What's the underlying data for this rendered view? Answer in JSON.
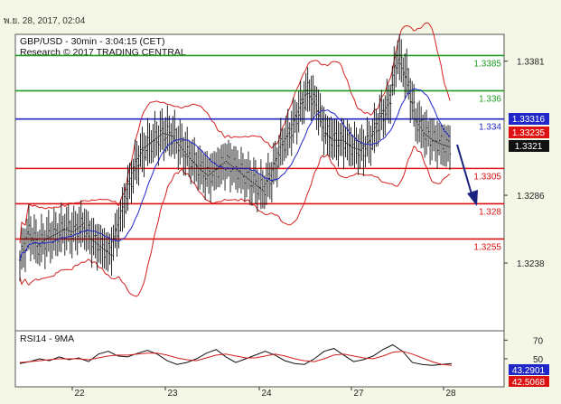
{
  "timestamp": "พ.ย. 28, 2017, 02:04",
  "chart_data": {
    "type": "line",
    "title": "GBP/USD - 30min - 3:04:15 (CET)",
    "subtitle": "Research © 2017 TRADING CENTRAL",
    "price_axis": {
      "ticks": [
        "1.3381",
        "1.3286",
        "1.3238"
      ]
    },
    "x_ticks": [
      "22",
      "23",
      "24",
      "27",
      "28"
    ],
    "levels": [
      {
        "label": "1.3385",
        "value": 1.3385,
        "color": "#1f9a1f"
      },
      {
        "label": "1.336",
        "value": 1.336,
        "color": "#1f9a1f"
      },
      {
        "label": "1.334",
        "value": 1.334,
        "color": "#2027c8"
      },
      {
        "label": "1.3305",
        "value": 1.3305,
        "color": "#dd1111"
      },
      {
        "label": "1.328",
        "value": 1.328,
        "color": "#dd1111"
      },
      {
        "label": "1.3255",
        "value": 1.3255,
        "color": "#dd1111"
      }
    ],
    "price_badges": [
      {
        "label": "1.33316",
        "color": "#2027c8"
      },
      {
        "label": "1.33235",
        "color": "#dd1111"
      },
      {
        "label": "1.3321",
        "color": "#111111"
      }
    ],
    "series": [
      {
        "name": "",
        "values": [
          1.324,
          1.326,
          1.325,
          1.3255,
          1.3258,
          1.3262,
          1.326,
          1.3265,
          1.3255,
          1.325,
          1.3245,
          1.3265,
          1.329,
          1.331,
          1.332,
          1.3325,
          1.333,
          1.3328,
          1.332,
          1.3312,
          1.3305,
          1.33,
          1.3305,
          1.331,
          1.3305,
          1.33,
          1.3295,
          1.329,
          1.33,
          1.332,
          1.333,
          1.3345,
          1.336,
          1.335,
          1.333,
          1.3325,
          1.3325,
          1.332,
          1.3318,
          1.3325,
          1.334,
          1.335,
          1.3385,
          1.337,
          1.334,
          1.333,
          1.3325,
          1.3322,
          1.332
        ]
      }
    ],
    "rsi": {
      "label": "RSI14 - 9MA",
      "ticks": [
        "70",
        "50"
      ],
      "ylim": [
        20,
        80
      ],
      "badges": [
        {
          "label": "43.2901",
          "color": "#2027c8"
        },
        {
          "label": "42.5068",
          "color": "#dd1111"
        }
      ],
      "series": [
        {
          "name": "",
          "values": [
            45,
            47,
            50,
            48,
            52,
            49,
            51,
            47,
            55,
            58,
            53,
            52,
            56,
            59,
            55,
            48,
            44,
            46,
            50,
            56,
            60,
            52,
            46,
            50,
            54,
            58,
            54,
            48,
            45,
            44,
            50,
            58,
            61,
            54,
            47,
            49,
            53,
            60,
            65,
            58,
            46,
            44,
            43,
            44,
            45
          ]
        },
        {
          "name": "",
          "values": [
            46,
            47,
            48,
            49,
            50,
            50,
            50,
            49,
            51,
            53,
            54,
            54,
            55,
            56,
            56,
            54,
            51,
            49,
            48,
            51,
            54,
            55,
            53,
            51,
            51,
            53,
            55,
            53,
            50,
            48,
            47,
            50,
            54,
            55,
            53,
            51,
            50,
            53,
            57,
            58,
            55,
            51,
            47,
            44,
            43
          ]
        }
      ]
    }
  }
}
